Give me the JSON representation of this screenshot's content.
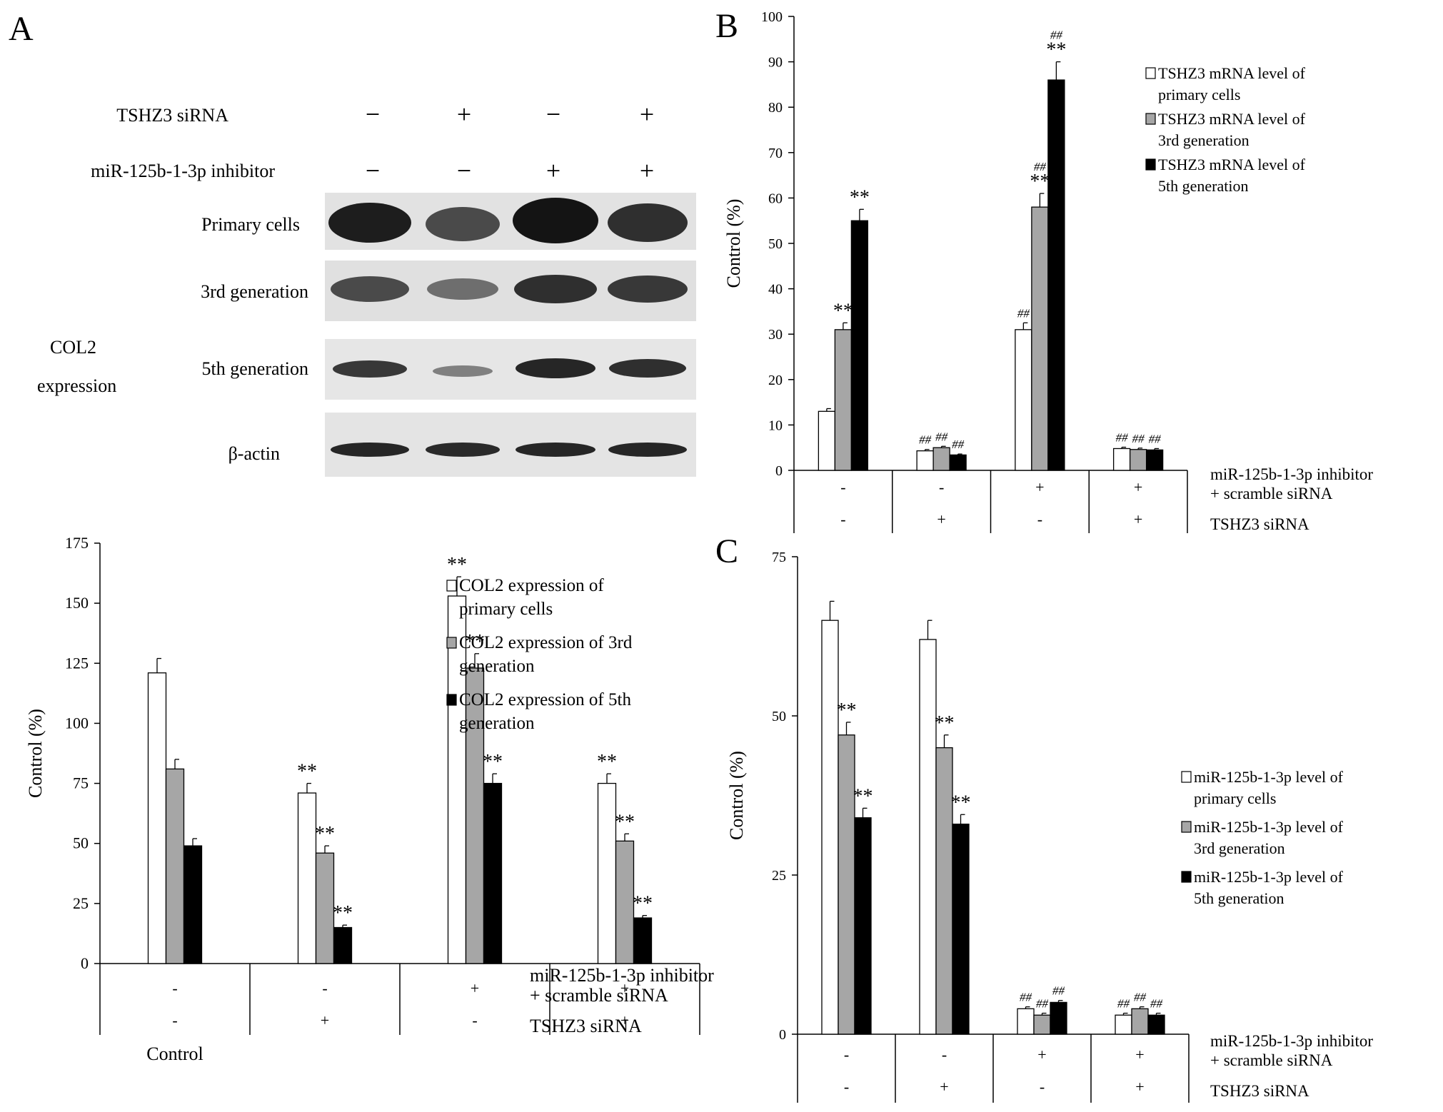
{
  "panel_labels": {
    "a": "A",
    "b": "B",
    "c": "C"
  },
  "blot": {
    "conditions": [
      {
        "label": "TSHZ3 siRNA",
        "signs": [
          "−",
          "+",
          "−",
          "+"
        ]
      },
      {
        "label": "miR-125b-1-3p inhibitor",
        "signs": [
          "−",
          "−",
          "+",
          "+"
        ]
      }
    ],
    "group_label_line1": "COL2",
    "group_label_line2": "expression",
    "rows": [
      {
        "label": "Primary cells",
        "intensities": [
          0.95,
          0.7,
          1.0,
          0.85
        ]
      },
      {
        "label": "3rd generation",
        "intensities": [
          0.7,
          0.5,
          0.85,
          0.8
        ]
      },
      {
        "label": "5th generation",
        "intensities": [
          0.8,
          0.4,
          0.9,
          0.85
        ]
      },
      {
        "label": "β-actin",
        "intensities": [
          0.9,
          0.88,
          0.9,
          0.9
        ]
      }
    ]
  },
  "colors": {
    "white_bar": "#ffffff",
    "gray_bar": "#a6a6a6",
    "black_bar": "#000000",
    "axis": "#000000"
  },
  "chart_data": [
    {
      "id": "A",
      "type": "bar",
      "ylabel": "Control (%)",
      "ylim": [
        0,
        175
      ],
      "yticks": [
        0,
        25,
        50,
        75,
        100,
        125,
        150,
        175
      ],
      "row_labels": [
        "miR-125b-1-3p  inhibitor",
        "+ scramble siRNA",
        "TSHZ3 siRNA"
      ],
      "row1_signs": [
        "-",
        "-",
        "+",
        "+"
      ],
      "row2_signs": [
        "-",
        "+",
        "-",
        "+"
      ],
      "below_label": "Control",
      "legend": [
        "COL2 expression of primary cells",
        "COL2 expression of 3rd generation",
        "COL2 expression of 5th generation"
      ],
      "legend_lines": [
        [
          "COL2 expression of",
          "primary cells"
        ],
        [
          "COL2 expression of 3rd",
          "generation"
        ],
        [
          "COL2 expression of 5th",
          "generation"
        ]
      ],
      "legend_position": "right",
      "series": [
        {
          "values": [
            121,
            71,
            153,
            75
          ],
          "errors": [
            6,
            4,
            8,
            4
          ],
          "annotations": [
            "",
            "**",
            "**",
            "**"
          ]
        },
        {
          "values": [
            81,
            46,
            123,
            51
          ],
          "errors": [
            4,
            3,
            6,
            3
          ],
          "annotations": [
            "",
            "**",
            "**",
            "**"
          ]
        },
        {
          "values": [
            49,
            15,
            75,
            19
          ],
          "errors": [
            3,
            1,
            4,
            1
          ],
          "annotations": [
            "",
            "**",
            "**",
            "**"
          ]
        }
      ]
    },
    {
      "id": "B",
      "type": "bar",
      "ylabel": "Control (%)",
      "ylim": [
        0,
        100
      ],
      "yticks": [
        0,
        10,
        20,
        30,
        40,
        50,
        60,
        70,
        80,
        90,
        100
      ],
      "row_labels": [
        "miR-125b-1-3p  inhibitor",
        "+ scramble siRNA",
        "TSHZ3 siRNA"
      ],
      "row1_signs": [
        "-",
        "-",
        "+",
        "+"
      ],
      "row2_signs": [
        "-",
        "+",
        "-",
        "+"
      ],
      "legend": [
        "TSHZ3 mRNA level of primary cells",
        "TSHZ3 mRNA level of 3rd generation",
        "TSHZ3 mRNA level of 5th generation"
      ],
      "legend_lines": [
        [
          "TSHZ3 mRNA level of",
          "primary cells"
        ],
        [
          "TSHZ3 mRNA level of",
          "3rd generation"
        ],
        [
          "TSHZ3 mRNA level of",
          "5th generation"
        ]
      ],
      "legend_position": "top-right",
      "series": [
        {
          "values": [
            13,
            4.3,
            31,
            4.8
          ],
          "errors": [
            0.6,
            0.3,
            1.5,
            0.3
          ],
          "annotations": [
            "",
            "##",
            "##",
            "##"
          ]
        },
        {
          "values": [
            31,
            5,
            58,
            4.6
          ],
          "errors": [
            1.5,
            0.3,
            3,
            0.3
          ],
          "annotations": [
            "**",
            "##",
            "##\n**",
            "##"
          ]
        },
        {
          "values": [
            55,
            3.4,
            86,
            4.5
          ],
          "errors": [
            2.5,
            0.2,
            4,
            0.3
          ],
          "annotations": [
            "**",
            "##",
            "##\n**",
            "##"
          ]
        }
      ]
    },
    {
      "id": "C",
      "type": "bar",
      "ylabel": "Control (%)",
      "ylim": [
        0,
        75
      ],
      "yticks": [
        0,
        25,
        50,
        75
      ],
      "row_labels": [
        "miR-125b-1-3p inhibitor",
        "+ scramble siRNA",
        "TSHZ3 siRNA"
      ],
      "row1_signs": [
        "-",
        "-",
        "+",
        "+"
      ],
      "row2_signs": [
        "-",
        "+",
        "-",
        "+"
      ],
      "legend": [
        "miR-125b-1-3p level of primary cells",
        "miR-125b-1-3p level of 3rd generation",
        "miR-125b-1-3p level of 5th generation"
      ],
      "legend_lines": [
        [
          "miR-125b-1-3p level of",
          "primary cells"
        ],
        [
          "miR-125b-1-3p level of",
          "3rd generation"
        ],
        [
          "miR-125b-1-3p level of",
          "5th generation"
        ]
      ],
      "legend_position": "right",
      "series": [
        {
          "values": [
            65,
            62,
            4,
            3
          ],
          "errors": [
            3,
            3,
            0.3,
            0.3
          ],
          "annotations": [
            "",
            "",
            "##",
            "##"
          ]
        },
        {
          "values": [
            47,
            45,
            3,
            4
          ],
          "errors": [
            2,
            2,
            0.3,
            0.3
          ],
          "annotations": [
            "**",
            "**",
            "##",
            "##"
          ]
        },
        {
          "values": [
            34,
            33,
            5,
            3
          ],
          "errors": [
            1.5,
            1.5,
            0.3,
            0.3
          ],
          "annotations": [
            "**",
            "**",
            "##",
            "##"
          ]
        }
      ]
    }
  ]
}
